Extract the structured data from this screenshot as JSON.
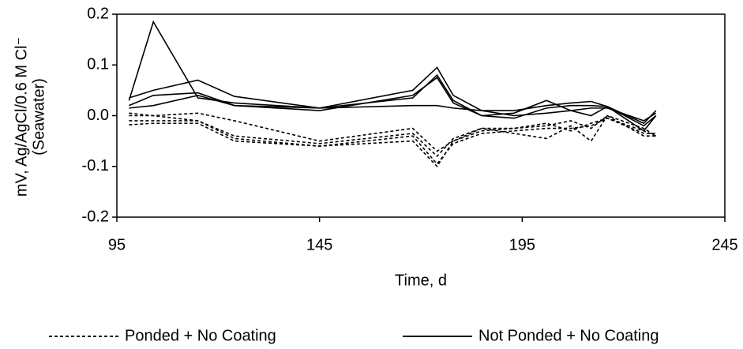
{
  "chart_data": {
    "type": "line",
    "xlabel": "Time, d",
    "ylabel": [
      "mV, Ag/AgCl/0.6 M Cl⁻",
      "(Seawater)"
    ],
    "x": [
      98,
      104,
      115,
      124,
      145,
      168,
      174,
      178,
      185,
      193,
      201,
      207,
      212,
      216,
      225,
      228
    ],
    "series": [
      {
        "name": "Ponded + No Coating",
        "color": "#000000",
        "style": "dotted",
        "values": [
          0.005,
          0.0,
          0.005,
          -0.01,
          -0.05,
          -0.025,
          -0.07,
          -0.05,
          -0.03,
          -0.025,
          -0.02,
          -0.01,
          -0.025,
          0.0,
          -0.04,
          -0.04
        ]
      },
      {
        "color": "#000000",
        "style": "dotted",
        "values": [
          0.0,
          0.0,
          -0.01,
          -0.04,
          -0.055,
          -0.035,
          -0.08,
          -0.045,
          -0.025,
          -0.025,
          -0.015,
          -0.03,
          -0.015,
          -0.005,
          -0.035,
          -0.035
        ]
      },
      {
        "color": "#000000",
        "style": "dotted",
        "values": [
          -0.01,
          -0.01,
          -0.01,
          -0.045,
          -0.06,
          -0.04,
          -0.095,
          -0.055,
          -0.035,
          -0.03,
          -0.025,
          -0.025,
          -0.02,
          -0.005,
          -0.03,
          -0.04
        ]
      },
      {
        "color": "#000000",
        "style": "dotted",
        "values": [
          -0.018,
          -0.015,
          -0.015,
          -0.05,
          -0.06,
          -0.05,
          -0.1,
          -0.05,
          -0.025,
          -0.035,
          -0.045,
          -0.02,
          -0.05,
          0.0,
          -0.025,
          -0.04
        ]
      },
      {
        "name": "Not Ponded + No Coating",
        "color": "#000000",
        "style": "solid",
        "values": [
          0.03,
          0.185,
          0.035,
          0.025,
          0.015,
          0.035,
          0.08,
          0.03,
          0.0,
          0.005,
          0.03,
          0.01,
          0.0,
          0.018,
          -0.02,
          0.0
        ]
      },
      {
        "color": "#000000",
        "style": "solid",
        "values": [
          0.035,
          0.05,
          0.07,
          0.038,
          0.015,
          0.05,
          0.095,
          0.04,
          0.01,
          0.01,
          0.02,
          0.025,
          0.028,
          0.018,
          -0.015,
          0.01
        ]
      },
      {
        "color": "#000000",
        "style": "solid",
        "values": [
          0.02,
          0.04,
          0.045,
          0.02,
          0.01,
          0.04,
          0.075,
          0.025,
          0.0,
          -0.005,
          0.015,
          0.02,
          0.02,
          0.018,
          -0.03,
          0.0
        ]
      },
      {
        "color": "#000000",
        "style": "solid",
        "values": [
          0.015,
          0.02,
          0.04,
          0.02,
          0.015,
          0.02,
          0.02,
          0.015,
          0.01,
          0.0,
          0.005,
          0.01,
          0.015,
          0.015,
          -0.01,
          0.005
        ]
      }
    ],
    "xlim": [
      95,
      245
    ],
    "xticks": [
      95,
      145,
      195,
      245
    ],
    "ylim": [
      -0.2,
      0.2
    ],
    "yticks": [
      0.2,
      0.1,
      {
        "value": 0,
        "label": "0.0"
      },
      -0.1,
      -0.2
    ],
    "legend": "bottom",
    "grid": false
  }
}
